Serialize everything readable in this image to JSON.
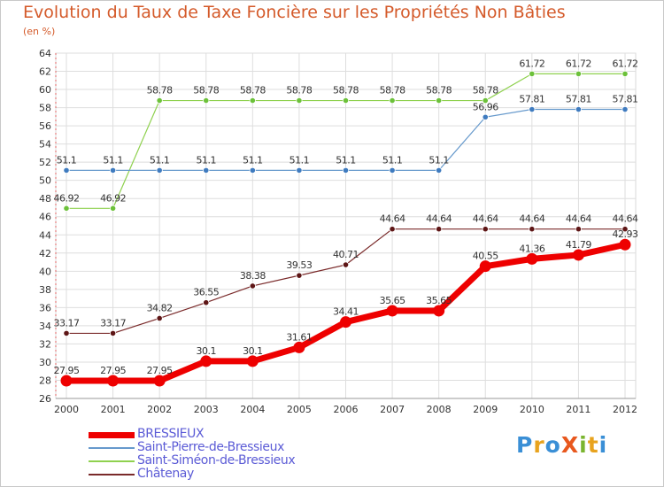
{
  "title": "Evolution du Taux de Taxe Foncière sur les Propriétés Non Bâties",
  "subtitle": "(en %)",
  "logo": {
    "text": "ProXiti",
    "colors": [
      "#3a8fd6",
      "#e8a31e",
      "#3a8fd6",
      "#e8581e",
      "#7ab52f",
      "#e8a31e",
      "#3a8fd6"
    ]
  },
  "chart_data": {
    "type": "line",
    "title": "Evolution du Taux de Taxe Foncière sur les Propriétés Non Bâties",
    "ylabel": "(en %)",
    "xlabel": "",
    "x": [
      "2000",
      "2001",
      "2002",
      "2003",
      "2004",
      "2005",
      "2006",
      "2007",
      "2008",
      "2009",
      "2010",
      "2011",
      "2012"
    ],
    "ylim": [
      26,
      64
    ],
    "yticks": [
      26,
      28,
      30,
      32,
      34,
      36,
      38,
      40,
      42,
      44,
      46,
      48,
      50,
      52,
      54,
      56,
      58,
      60,
      62,
      64
    ],
    "grid": true,
    "legend_position": "bottom-left",
    "series": [
      {
        "name": "Saint-Siméon-de-Bressieux",
        "color": "#8fd14f",
        "marker": "#6cc13a",
        "width": 1.2,
        "radius": 3.2,
        "values": [
          46.92,
          46.92,
          58.78,
          58.78,
          58.78,
          58.78,
          58.78,
          58.78,
          58.78,
          58.78,
          61.72,
          61.72,
          61.72
        ],
        "labels": [
          "46.92",
          "46.92",
          "58.78",
          "58.78",
          "58.78",
          "58.78",
          "58.78",
          "58.78",
          "58.78",
          "58.78",
          "61.72",
          "61.72",
          "61.72"
        ]
      },
      {
        "name": "Saint-Pierre-de-Bressieux",
        "color": "#6699cc",
        "marker": "#3f7bbf",
        "width": 1.2,
        "radius": 3.2,
        "values": [
          51.1,
          51.1,
          51.1,
          51.1,
          51.1,
          51.1,
          51.1,
          51.1,
          51.1,
          56.96,
          57.81,
          57.81,
          57.81
        ],
        "labels": [
          "51.1",
          "51.1",
          "51.1",
          "51.1",
          "51.1",
          "51.1",
          "51.1",
          "51.1",
          "51.1",
          "56.96",
          "57.81",
          "57.81",
          "57.81"
        ]
      },
      {
        "name": "Châtenay",
        "color": "#7a2a2a",
        "marker": "#5e1616",
        "width": 1.2,
        "radius": 3.2,
        "values": [
          33.17,
          33.17,
          34.82,
          36.55,
          38.38,
          39.53,
          40.71,
          44.64,
          44.64,
          44.64,
          44.64,
          44.64,
          44.64
        ],
        "labels": [
          "33.17",
          "33.17",
          "34.82",
          "36.55",
          "38.38",
          "39.53",
          "40.71",
          "44.64",
          "44.64",
          "44.64",
          "44.64",
          "44.64",
          "44.64"
        ]
      },
      {
        "name": "BRESSIEUX",
        "color": "#ee0000",
        "marker": "#ee0000",
        "width": 7,
        "radius": 6.5,
        "values": [
          27.95,
          27.95,
          27.95,
          30.1,
          30.1,
          31.61,
          34.41,
          35.65,
          35.65,
          40.55,
          41.36,
          41.79,
          42.93
        ],
        "labels": [
          "27.95",
          "27.95",
          "27.95",
          "30.1",
          "30.1",
          "31.61",
          "34.41",
          "35.65",
          "35.65",
          "40.55",
          "41.36",
          "41.79",
          "42.93"
        ]
      }
    ],
    "legend_order": [
      "BRESSIEUX",
      "Saint-Pierre-de-Bressieux",
      "Saint-Siméon-de-Bressieux",
      "Châtenay"
    ]
  }
}
